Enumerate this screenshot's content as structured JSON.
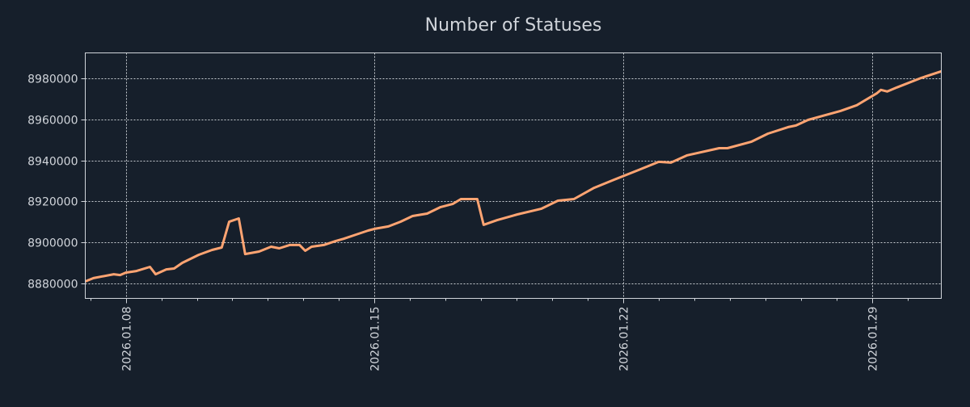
{
  "chart_data": {
    "type": "line",
    "title": "Number of Statuses",
    "xlabel": "",
    "ylabel": "",
    "x_units": "day of January 2026",
    "xlim": [
      6.86,
      30.95
    ],
    "ylim": [
      8872500,
      8992600
    ],
    "grid": true,
    "x_ticks": [
      {
        "value": 8,
        "label": "2026.01.08"
      },
      {
        "value": 15,
        "label": "2026.01.15"
      },
      {
        "value": 22,
        "label": "2026.01.22"
      },
      {
        "value": 29,
        "label": "2026.01.29"
      }
    ],
    "y_ticks": [
      {
        "value": 8880000,
        "label": "8880000"
      },
      {
        "value": 8900000,
        "label": "8900000"
      },
      {
        "value": 8920000,
        "label": "8920000"
      },
      {
        "value": 8940000,
        "label": "8940000"
      },
      {
        "value": 8960000,
        "label": "8960000"
      },
      {
        "value": 8980000,
        "label": "8980000"
      }
    ],
    "series": [
      {
        "name": "statuses",
        "color": "#ffa472",
        "x": [
          6.86,
          7.09,
          7.66,
          7.84,
          8.0,
          8.3,
          8.68,
          8.84,
          9.14,
          9.36,
          9.59,
          10.05,
          10.43,
          10.7,
          10.91,
          11.18,
          11.36,
          11.75,
          12.09,
          12.32,
          12.61,
          12.89,
          13.05,
          13.23,
          13.57,
          13.91,
          14.14,
          14.48,
          14.82,
          15.0,
          15.39,
          15.73,
          16.07,
          16.48,
          16.86,
          17.2,
          17.43,
          17.89,
          18.07,
          18.45,
          19.02,
          19.7,
          20.16,
          20.61,
          21.18,
          21.75,
          22.43,
          23.0,
          23.34,
          23.8,
          24.7,
          24.93,
          25.61,
          26.07,
          26.64,
          26.86,
          27.2,
          28.11,
          28.57,
          29.14,
          29.25,
          29.43,
          29.7,
          30.39,
          30.95
        ],
        "y": [
          8880800,
          8882400,
          8884300,
          8883900,
          8885100,
          8885900,
          8887900,
          8884300,
          8886700,
          8887100,
          8889900,
          8893800,
          8896200,
          8897400,
          8910000,
          8911600,
          8894200,
          8895400,
          8897800,
          8897000,
          8898600,
          8898600,
          8895800,
          8897800,
          8898600,
          8900600,
          8901700,
          8903700,
          8905700,
          8906500,
          8907700,
          8910000,
          8912800,
          8914000,
          8917200,
          8918700,
          8921100,
          8921100,
          8908500,
          8910800,
          8913600,
          8916400,
          8920300,
          8921100,
          8926600,
          8930600,
          8935300,
          8939300,
          8938900,
          8942500,
          8946000,
          8946000,
          8949200,
          8953100,
          8956300,
          8957100,
          8959800,
          8964200,
          8967000,
          8972900,
          8974500,
          8973700,
          8975700,
          8980400,
          8983600
        ]
      }
    ]
  },
  "colors": {
    "background": "#161f2b",
    "axis": "#d0d4da",
    "grid": "#c8ccd2"
  }
}
